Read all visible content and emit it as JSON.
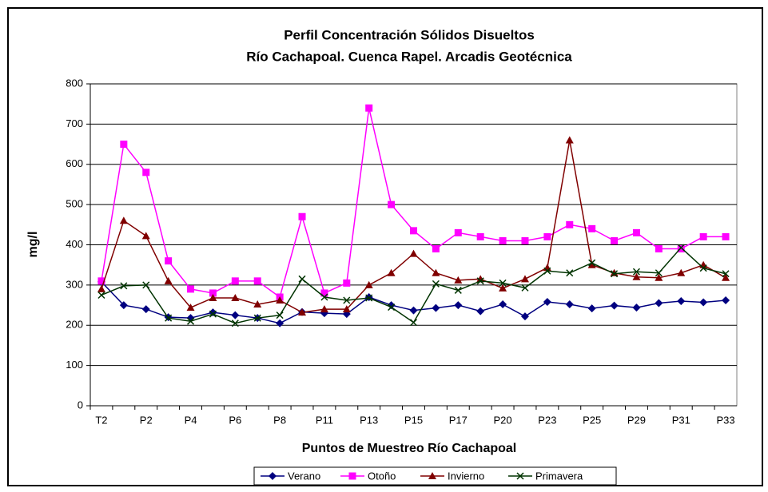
{
  "chart_data": {
    "type": "line",
    "title": "Perfil Concentración Sólidos Disueltos",
    "subtitle": "Río Cachapoal. Cuenca Rapel. Arcadis Geotécnica",
    "x_label": "Puntos de Muestreo Río Cachapoal",
    "y_label": "mg/l",
    "categories": [
      "T2",
      null,
      "P2",
      null,
      "P4",
      null,
      "P6",
      null,
      "P8",
      null,
      "P11",
      null,
      "P13",
      null,
      "P15",
      null,
      "P17",
      null,
      "P20",
      null,
      "P23",
      null,
      "P25",
      null,
      "P29",
      null,
      "P31",
      null,
      "P33"
    ],
    "series": [
      {
        "name": "Verano",
        "color": "#000080",
        "marker": "diamond",
        "values": [
          308,
          250,
          240,
          220,
          218,
          232,
          225,
          218,
          205,
          233,
          230,
          228,
          270,
          250,
          237,
          243,
          250,
          235,
          252,
          222,
          258,
          252,
          242,
          249,
          244,
          255,
          260,
          257,
          262
        ]
      },
      {
        "name": "Otoño",
        "color": "#ff00ff",
        "marker": "square",
        "values": [
          310,
          650,
          580,
          360,
          290,
          280,
          310,
          310,
          270,
          470,
          280,
          305,
          740,
          500,
          435,
          390,
          430,
          420,
          410,
          410,
          420,
          450,
          440,
          410,
          430,
          390,
          390,
          420,
          420
        ]
      },
      {
        "name": "Invierno",
        "color": "#800000",
        "marker": "triangle",
        "values": [
          290,
          460,
          422,
          310,
          244,
          268,
          268,
          252,
          262,
          232,
          240,
          240,
          300,
          330,
          378,
          330,
          312,
          315,
          292,
          315,
          343,
          660,
          350,
          330,
          320,
          318,
          330,
          350,
          318
        ]
      },
      {
        "name": "Primavera",
        "color": "#003300",
        "marker": "x",
        "values": [
          275,
          298,
          300,
          218,
          210,
          228,
          205,
          218,
          225,
          315,
          270,
          262,
          268,
          245,
          207,
          303,
          287,
          310,
          305,
          293,
          335,
          330,
          355,
          328,
          333,
          330,
          393,
          342,
          328
        ]
      }
    ],
    "ylim": [
      0,
      800
    ],
    "yticks": [
      0,
      100,
      200,
      300,
      400,
      500,
      600,
      700,
      800
    ],
    "grid": true,
    "legend": "bottom"
  }
}
